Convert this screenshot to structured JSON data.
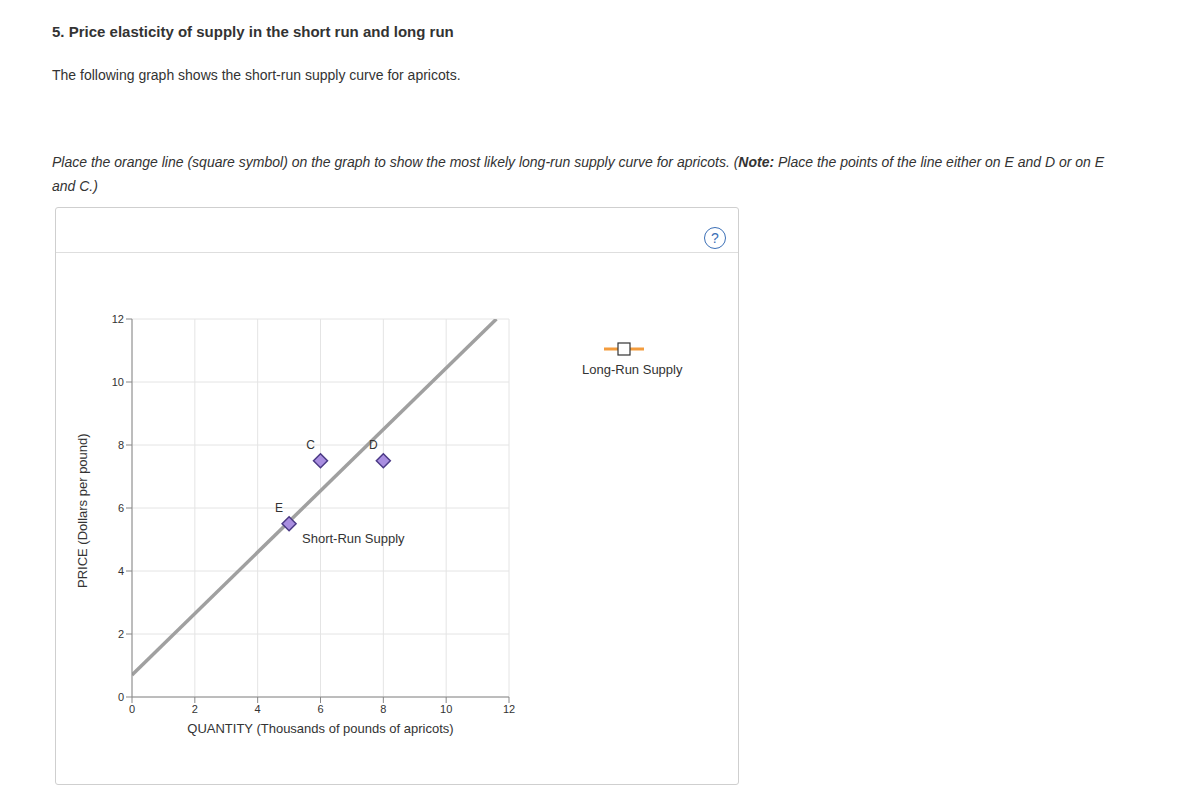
{
  "page": {
    "heading": "5. Price elasticity of supply in the short run and long run",
    "intro": "The following graph shows the short-run supply curve for apricots.",
    "instruction_parts": [
      "Place the orange line (square symbol) on the graph to show the most likely long-run supply curve for apricots. (",
      "Note:",
      " Place the points of the line either on E and D or on E and C.)"
    ],
    "help_icon": "?"
  },
  "chart_data": {
    "type": "line",
    "xlabel": "QUANTITY (Thousands of pounds of apricots)",
    "ylabel": "PRICE (Dollars per pound)",
    "xlim": [
      0,
      12
    ],
    "xticks": [
      0,
      2,
      4,
      6,
      8,
      10,
      12
    ],
    "ylim": [
      0,
      12
    ],
    "yticks": [
      0,
      2,
      4,
      6,
      8,
      10,
      12
    ],
    "grid": true,
    "series": [
      {
        "name": "Short-Run Supply",
        "type": "line",
        "color": "#a0a0a0",
        "x": [
          0,
          11.6
        ],
        "values": [
          0.7,
          12
        ]
      },
      {
        "name": "E",
        "type": "scatter",
        "color": "#a98ee0",
        "marker": "diamond",
        "x": [
          5
        ],
        "values": [
          5.5
        ]
      },
      {
        "name": "C",
        "type": "scatter",
        "color": "#a98ee0",
        "marker": "diamond",
        "x": [
          6
        ],
        "values": [
          7.5
        ]
      },
      {
        "name": "D",
        "type": "scatter",
        "color": "#a98ee0",
        "marker": "diamond",
        "x": [
          8
        ],
        "values": [
          7.5
        ]
      },
      {
        "name": "Long-Run Supply",
        "type": "line",
        "color": "#f39c3d",
        "marker": "square",
        "x": [],
        "values": []
      }
    ]
  }
}
